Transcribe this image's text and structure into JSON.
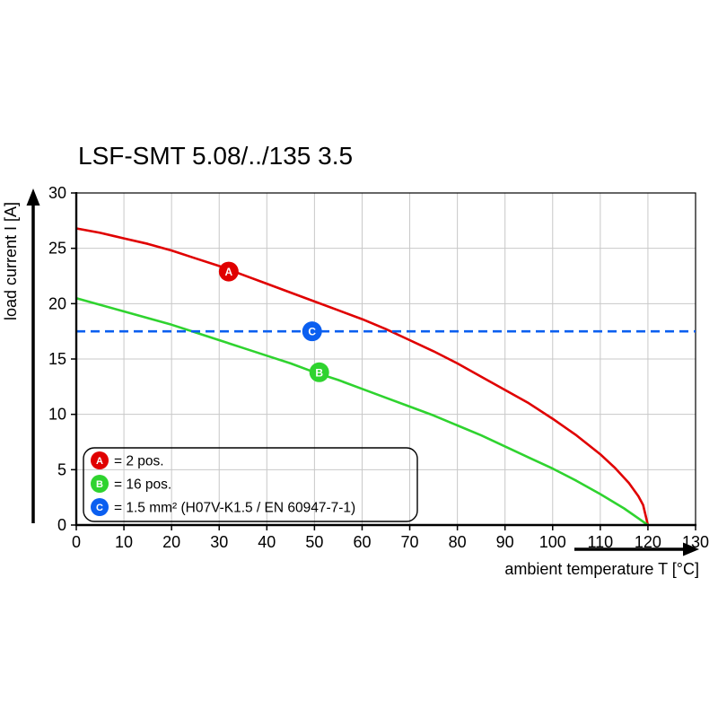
{
  "chart_data": {
    "type": "line",
    "title": "LSF-SMT 5.08/../135 3.5",
    "xlabel": "ambient temperature T [°C]",
    "ylabel": "load current I [A]",
    "xlim": [
      0,
      130
    ],
    "ylim": [
      0,
      30
    ],
    "xticks": [
      0,
      10,
      20,
      30,
      40,
      50,
      60,
      70,
      80,
      90,
      100,
      110,
      120,
      130
    ],
    "yticks": [
      0,
      5,
      10,
      15,
      20,
      25,
      30
    ],
    "grid": true,
    "legend_position": "bottom-left",
    "colors": {
      "grid": "#c8c8c8",
      "axis": "#000000",
      "background": "#ffffff"
    },
    "series": [
      {
        "name": "A",
        "legend_label": "= 2 pos.",
        "color": "#e00000",
        "style": "solid",
        "marker": {
          "x": 32,
          "y": 22.9
        },
        "points": [
          [
            0,
            26.8
          ],
          [
            5,
            26.4
          ],
          [
            10,
            25.9
          ],
          [
            15,
            25.4
          ],
          [
            20,
            24.8
          ],
          [
            25,
            24.1
          ],
          [
            30,
            23.4
          ],
          [
            35,
            22.6
          ],
          [
            40,
            21.8
          ],
          [
            45,
            21.0
          ],
          [
            50,
            20.2
          ],
          [
            55,
            19.4
          ],
          [
            60,
            18.6
          ],
          [
            65,
            17.7
          ],
          [
            70,
            16.7
          ],
          [
            75,
            15.7
          ],
          [
            80,
            14.6
          ],
          [
            85,
            13.4
          ],
          [
            90,
            12.2
          ],
          [
            95,
            11.0
          ],
          [
            100,
            9.6
          ],
          [
            105,
            8.1
          ],
          [
            110,
            6.4
          ],
          [
            113,
            5.2
          ],
          [
            116,
            3.8
          ],
          [
            118,
            2.6
          ],
          [
            119,
            1.8
          ],
          [
            120,
            0
          ]
        ]
      },
      {
        "name": "B",
        "legend_label": "= 16 pos.",
        "color": "#2fd32f",
        "style": "solid",
        "marker": {
          "x": 51,
          "y": 13.8
        },
        "points": [
          [
            0,
            20.5
          ],
          [
            5,
            19.9
          ],
          [
            10,
            19.3
          ],
          [
            15,
            18.7
          ],
          [
            20,
            18.1
          ],
          [
            25,
            17.4
          ],
          [
            30,
            16.7
          ],
          [
            35,
            16.0
          ],
          [
            40,
            15.3
          ],
          [
            45,
            14.6
          ],
          [
            50,
            13.8
          ],
          [
            55,
            13.1
          ],
          [
            60,
            12.3
          ],
          [
            65,
            11.5
          ],
          [
            70,
            10.7
          ],
          [
            75,
            9.9
          ],
          [
            80,
            9.0
          ],
          [
            85,
            8.1
          ],
          [
            90,
            7.1
          ],
          [
            95,
            6.1
          ],
          [
            100,
            5.1
          ],
          [
            105,
            4.0
          ],
          [
            110,
            2.8
          ],
          [
            115,
            1.5
          ],
          [
            118,
            0.6
          ],
          [
            120,
            0
          ]
        ]
      },
      {
        "name": "C",
        "legend_label": "= 1.5 mm² (H07V-K1.5 / EN 60947-7-1)",
        "color": "#0b5ff0",
        "style": "dashed",
        "marker": {
          "x": 49.5,
          "y": 17.5
        },
        "points": [
          [
            0,
            17.5
          ],
          [
            130,
            17.5
          ]
        ]
      }
    ]
  }
}
